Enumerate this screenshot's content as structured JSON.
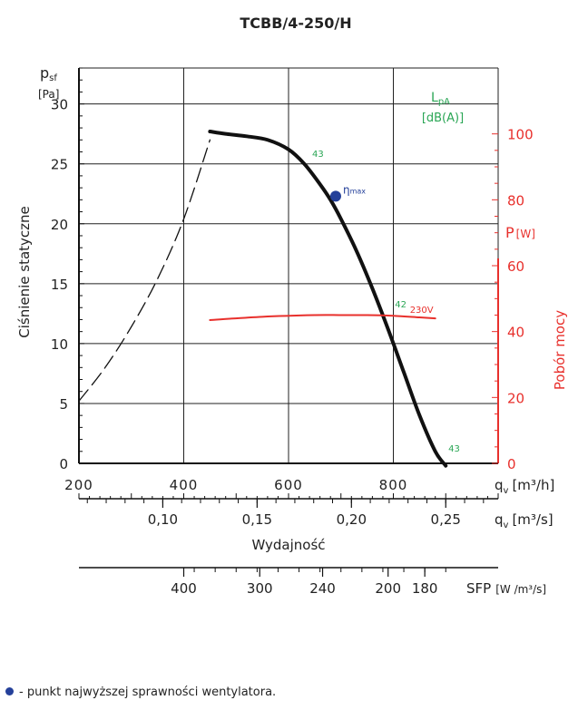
{
  "chart_data": {
    "type": "line",
    "title": "TCBB/4-250/H",
    "ylabel": "Ciśnienie statyczne",
    "y_symbol": "p",
    "y_symbol_sub": "sf",
    "y_unit": "[Pa]",
    "ylim": [
      0,
      33
    ],
    "y_ticks": [
      0,
      5,
      10,
      15,
      20,
      25,
      30
    ],
    "y_tick_labels": [
      "0",
      "5",
      "10",
      "15",
      "20",
      "25",
      "30"
    ],
    "y2label": "Pobór mocy",
    "y2_symbol": "P",
    "y2_unit": "[W]",
    "y2lim": [
      0,
      120
    ],
    "y2_ticks": [
      0,
      20,
      40,
      60,
      80,
      100
    ],
    "y2_tick_labels": [
      "0",
      "20",
      "40",
      "60",
      "80",
      "100"
    ],
    "xlabel": "Wydajność",
    "xlim": [
      200,
      1000
    ],
    "x_ticks": [
      200,
      400,
      600,
      800
    ],
    "x_tick_labels": [
      "200",
      "400",
      "600",
      "800"
    ],
    "x_symbol": "q",
    "x_symbol_sub": "v",
    "x_unit": "[m³/h]",
    "x2_ticks": [
      0.1,
      0.15,
      0.2,
      0.25
    ],
    "x2_tick_labels": [
      "0,10",
      "0,15",
      "0,20",
      "0,25"
    ],
    "x2_unit": "[m³/s]",
    "sfp_ticks": [
      400,
      300,
      240,
      200,
      180
    ],
    "sfp_tick_labels": [
      "400",
      "300",
      "240",
      "200",
      "180"
    ],
    "sfp_label": "SFP",
    "sfp_unit": "[W /m³/s]",
    "lpa_symbol": "L",
    "lpa_sub": "pA",
    "lpa_unit": "[dB(A)]",
    "series": [
      {
        "role": "pressure",
        "x": [
          450,
          480,
          520,
          560,
          600,
          630,
          660,
          680,
          700,
          730,
          760,
          790,
          820,
          850,
          880,
          900
        ],
        "y": [
          27.7,
          27.5,
          27.3,
          27.0,
          26.2,
          25.0,
          23.3,
          22.0,
          20.4,
          17.7,
          14.6,
          11.2,
          7.6,
          4.0,
          1.0,
          -0.2
        ],
        "color": "#111111"
      },
      {
        "role": "pressure-unstable",
        "x": [
          200,
          250,
          300,
          350,
          400,
          450
        ],
        "y": [
          5.2,
          8.0,
          11.4,
          15.4,
          20.4,
          27.0
        ],
        "color": "#111111",
        "dash": true
      },
      {
        "role": "power",
        "name": "230V",
        "axis": "y2",
        "x": [
          450,
          550,
          650,
          700,
          750,
          800,
          850,
          880
        ],
        "y": [
          43.5,
          44.5,
          45.0,
          45.0,
          45.0,
          44.8,
          44.3,
          44.0
        ],
        "color": "#e8302c"
      }
    ],
    "eta_max": {
      "x": 690,
      "y": 22.3,
      "label_symbol": "η",
      "label_sub": "max",
      "color": "#24409a"
    },
    "noise_labels": [
      {
        "x": 645,
        "y": 25.6,
        "text": "43"
      },
      {
        "x": 803,
        "y": 13.0,
        "text": "42"
      },
      {
        "x": 905,
        "y": 1.0,
        "text": "43"
      }
    ],
    "grid": true
  },
  "footnote": "- punkt najwyższej sprawności wentylatora."
}
